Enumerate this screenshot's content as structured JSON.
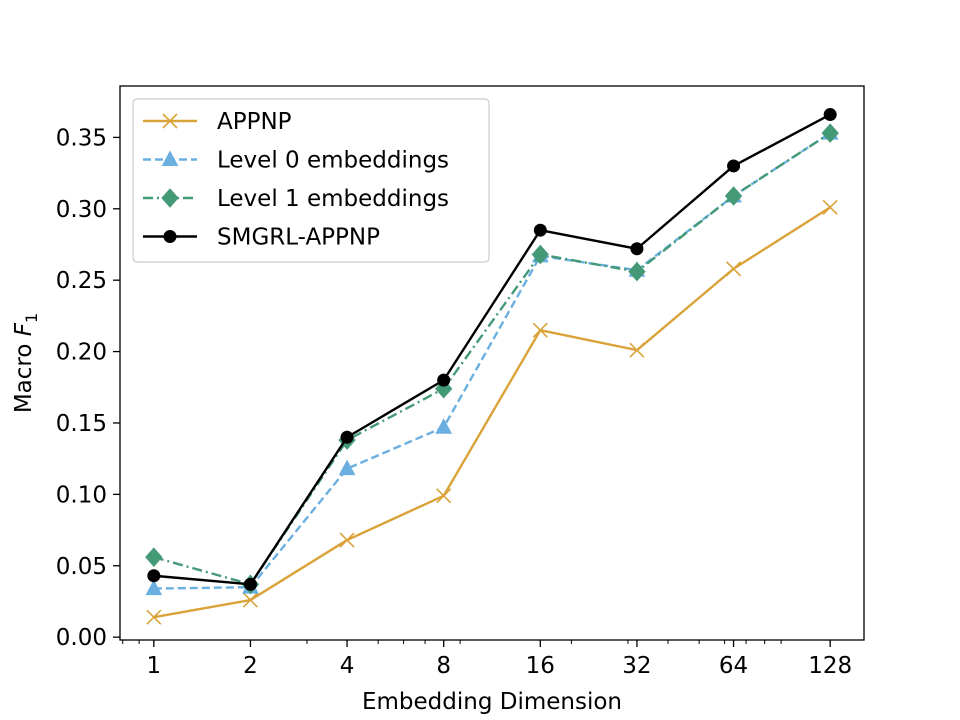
{
  "chart_data": {
    "type": "line",
    "title": "",
    "xlabel": "Embedding Dimension",
    "ylabel_main": "Macro ",
    "ylabel_math": "F",
    "ylabel_sub": "1",
    "x": [
      1,
      2,
      4,
      8,
      16,
      32,
      64,
      128
    ],
    "x_tick_labels": [
      "1",
      "2",
      "4",
      "8",
      "16",
      "32",
      "64",
      "128"
    ],
    "x_scale": "log2",
    "y_ticks": [
      0.0,
      0.05,
      0.1,
      0.15,
      0.2,
      0.25,
      0.3,
      0.35
    ],
    "y_tick_labels": [
      "0.00",
      "0.05",
      "0.10",
      "0.15",
      "0.20",
      "0.25",
      "0.30",
      "0.35"
    ],
    "ylim": [
      -0.002,
      0.386
    ],
    "grid": false,
    "legend_position": "top-left",
    "series": [
      {
        "name": "APPNP",
        "color": "#daa33a",
        "marker": "x",
        "dash": "",
        "values": [
          0.014,
          0.026,
          0.068,
          0.099,
          0.215,
          0.201,
          0.258,
          0.301
        ]
      },
      {
        "name": "Level 0 embeddings",
        "color": "#6aafe0",
        "marker": "triangle",
        "dash": "8 4",
        "values": [
          0.034,
          0.035,
          0.118,
          0.147,
          0.267,
          0.257,
          0.309,
          0.353
        ]
      },
      {
        "name": "Level 1 embeddings",
        "color": "#449977",
        "marker": "diamond",
        "dash": "10 4 2 4",
        "values": [
          0.056,
          0.037,
          0.138,
          0.174,
          0.268,
          0.256,
          0.309,
          0.353
        ]
      },
      {
        "name": "SMGRL-APPNP",
        "color": "#000000",
        "marker": "circle",
        "dash": "",
        "values": [
          0.043,
          0.037,
          0.14,
          0.18,
          0.285,
          0.272,
          0.33,
          0.366
        ]
      }
    ]
  }
}
